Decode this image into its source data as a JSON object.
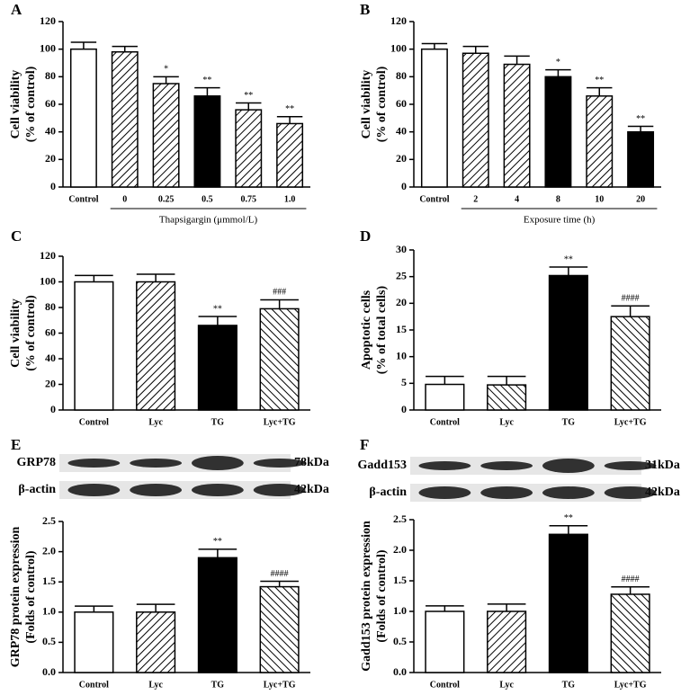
{
  "chart_data": [
    {
      "panel": "A",
      "type": "bar",
      "y_label": [
        "Cell viability",
        "(% of control)"
      ],
      "x_label": "Thapsigargin (μmmol/L)",
      "categories": [
        "Control",
        "0",
        "0.25",
        "0.5",
        "0.75",
        "1.0"
      ],
      "values": [
        100,
        98,
        75,
        66,
        56,
        46
      ],
      "errors": [
        5,
        4,
        5,
        6,
        5,
        5
      ],
      "fills": [
        "white",
        "hatch",
        "hatch",
        "black",
        "hatch",
        "hatch"
      ],
      "annotations": [
        null,
        null,
        "*",
        "**",
        "**",
        "**"
      ],
      "ylim": [
        0,
        120
      ],
      "yticks": [
        0,
        20,
        40,
        60,
        80,
        100,
        120
      ]
    },
    {
      "panel": "B",
      "type": "bar",
      "y_label": [
        "Cell viability",
        "(% of control)"
      ],
      "x_label": "Exposure time (h)",
      "categories": [
        "Control",
        "2",
        "4",
        "8",
        "10",
        "20"
      ],
      "values": [
        100,
        97,
        89,
        80,
        66,
        40
      ],
      "errors": [
        4,
        5,
        6,
        5,
        6,
        4
      ],
      "fills": [
        "white",
        "hatch",
        "hatch",
        "black",
        "hatch",
        "black"
      ],
      "annotations": [
        null,
        null,
        null,
        "*",
        "**",
        "**"
      ],
      "ylim": [
        0,
        120
      ],
      "yticks": [
        0,
        20,
        40,
        60,
        80,
        100,
        120
      ]
    },
    {
      "panel": "C",
      "type": "bar",
      "y_label": [
        "Cell viability",
        "(% of control)"
      ],
      "categories": [
        "Control",
        "Lyc",
        "TG",
        "Lyc+TG"
      ],
      "values": [
        100,
        100,
        66,
        79
      ],
      "errors": [
        5,
        6,
        7,
        7
      ],
      "fills": [
        "white",
        "hatch",
        "black",
        "backhatch"
      ],
      "annotations": [
        null,
        null,
        "**",
        "###"
      ],
      "ylim": [
        0,
        120
      ],
      "yticks": [
        0,
        20,
        40,
        60,
        80,
        100,
        120
      ]
    },
    {
      "panel": "D",
      "type": "bar",
      "y_label": [
        "Apoptotic cells",
        "(% of total cells)"
      ],
      "categories": [
        "Control",
        "Lyc",
        "TG",
        "Lyc+TG"
      ],
      "values": [
        4.8,
        4.7,
        25.2,
        17.5
      ],
      "errors": [
        1.5,
        1.6,
        1.6,
        2.0
      ],
      "fills": [
        "white",
        "backhatch",
        "black",
        "backhatch"
      ],
      "annotations": [
        null,
        null,
        "**",
        "####"
      ],
      "ylim": [
        0,
        30
      ],
      "yticks": [
        0,
        5,
        10,
        15,
        20,
        25,
        30
      ]
    },
    {
      "panel": "E",
      "type": "bar",
      "y_label": [
        "GRP78 protein expression",
        "(Folds of control)"
      ],
      "blot": [
        {
          "name": "GRP78",
          "size": "78kDa"
        },
        {
          "name": "β-actin",
          "size": "42kDa"
        }
      ],
      "categories": [
        "Control",
        "Lyc",
        "TG",
        "Lyc+TG"
      ],
      "values": [
        1.0,
        1.0,
        1.9,
        1.42
      ],
      "errors": [
        0.1,
        0.13,
        0.14,
        0.09
      ],
      "fills": [
        "white",
        "hatch",
        "black",
        "backhatch"
      ],
      "annotations": [
        null,
        null,
        "**",
        "####"
      ],
      "ylim": [
        0,
        2.5
      ],
      "yticks": [
        {
          "value": 0,
          "label": "0.0"
        },
        0.5,
        {
          "value": 1,
          "label": "1.0"
        },
        1.5,
        {
          "value": 2,
          "label": "2.0"
        },
        2.5
      ]
    },
    {
      "panel": "F",
      "type": "bar",
      "y_label": [
        "Gadd153 protein expression",
        "(Folds of control)"
      ],
      "blot": [
        {
          "name": "Gadd153",
          "size": "31kDa"
        },
        {
          "name": "β-actin",
          "size": "42kDa"
        }
      ],
      "categories": [
        "Control",
        "Lyc",
        "TG",
        "Lyc+TG"
      ],
      "values": [
        1.0,
        1.0,
        2.26,
        1.28
      ],
      "errors": [
        0.09,
        0.12,
        0.14,
        0.12
      ],
      "fills": [
        "white",
        "hatch",
        "black",
        "backhatch"
      ],
      "annotations": [
        null,
        null,
        "**",
        "####"
      ],
      "ylim": [
        0,
        2.5
      ],
      "yticks": [
        {
          "value": 0,
          "label": "0.0"
        },
        0.5,
        {
          "value": 1,
          "label": "1.0"
        },
        1.5,
        {
          "value": 2,
          "label": "2.0"
        },
        2.5
      ]
    }
  ]
}
